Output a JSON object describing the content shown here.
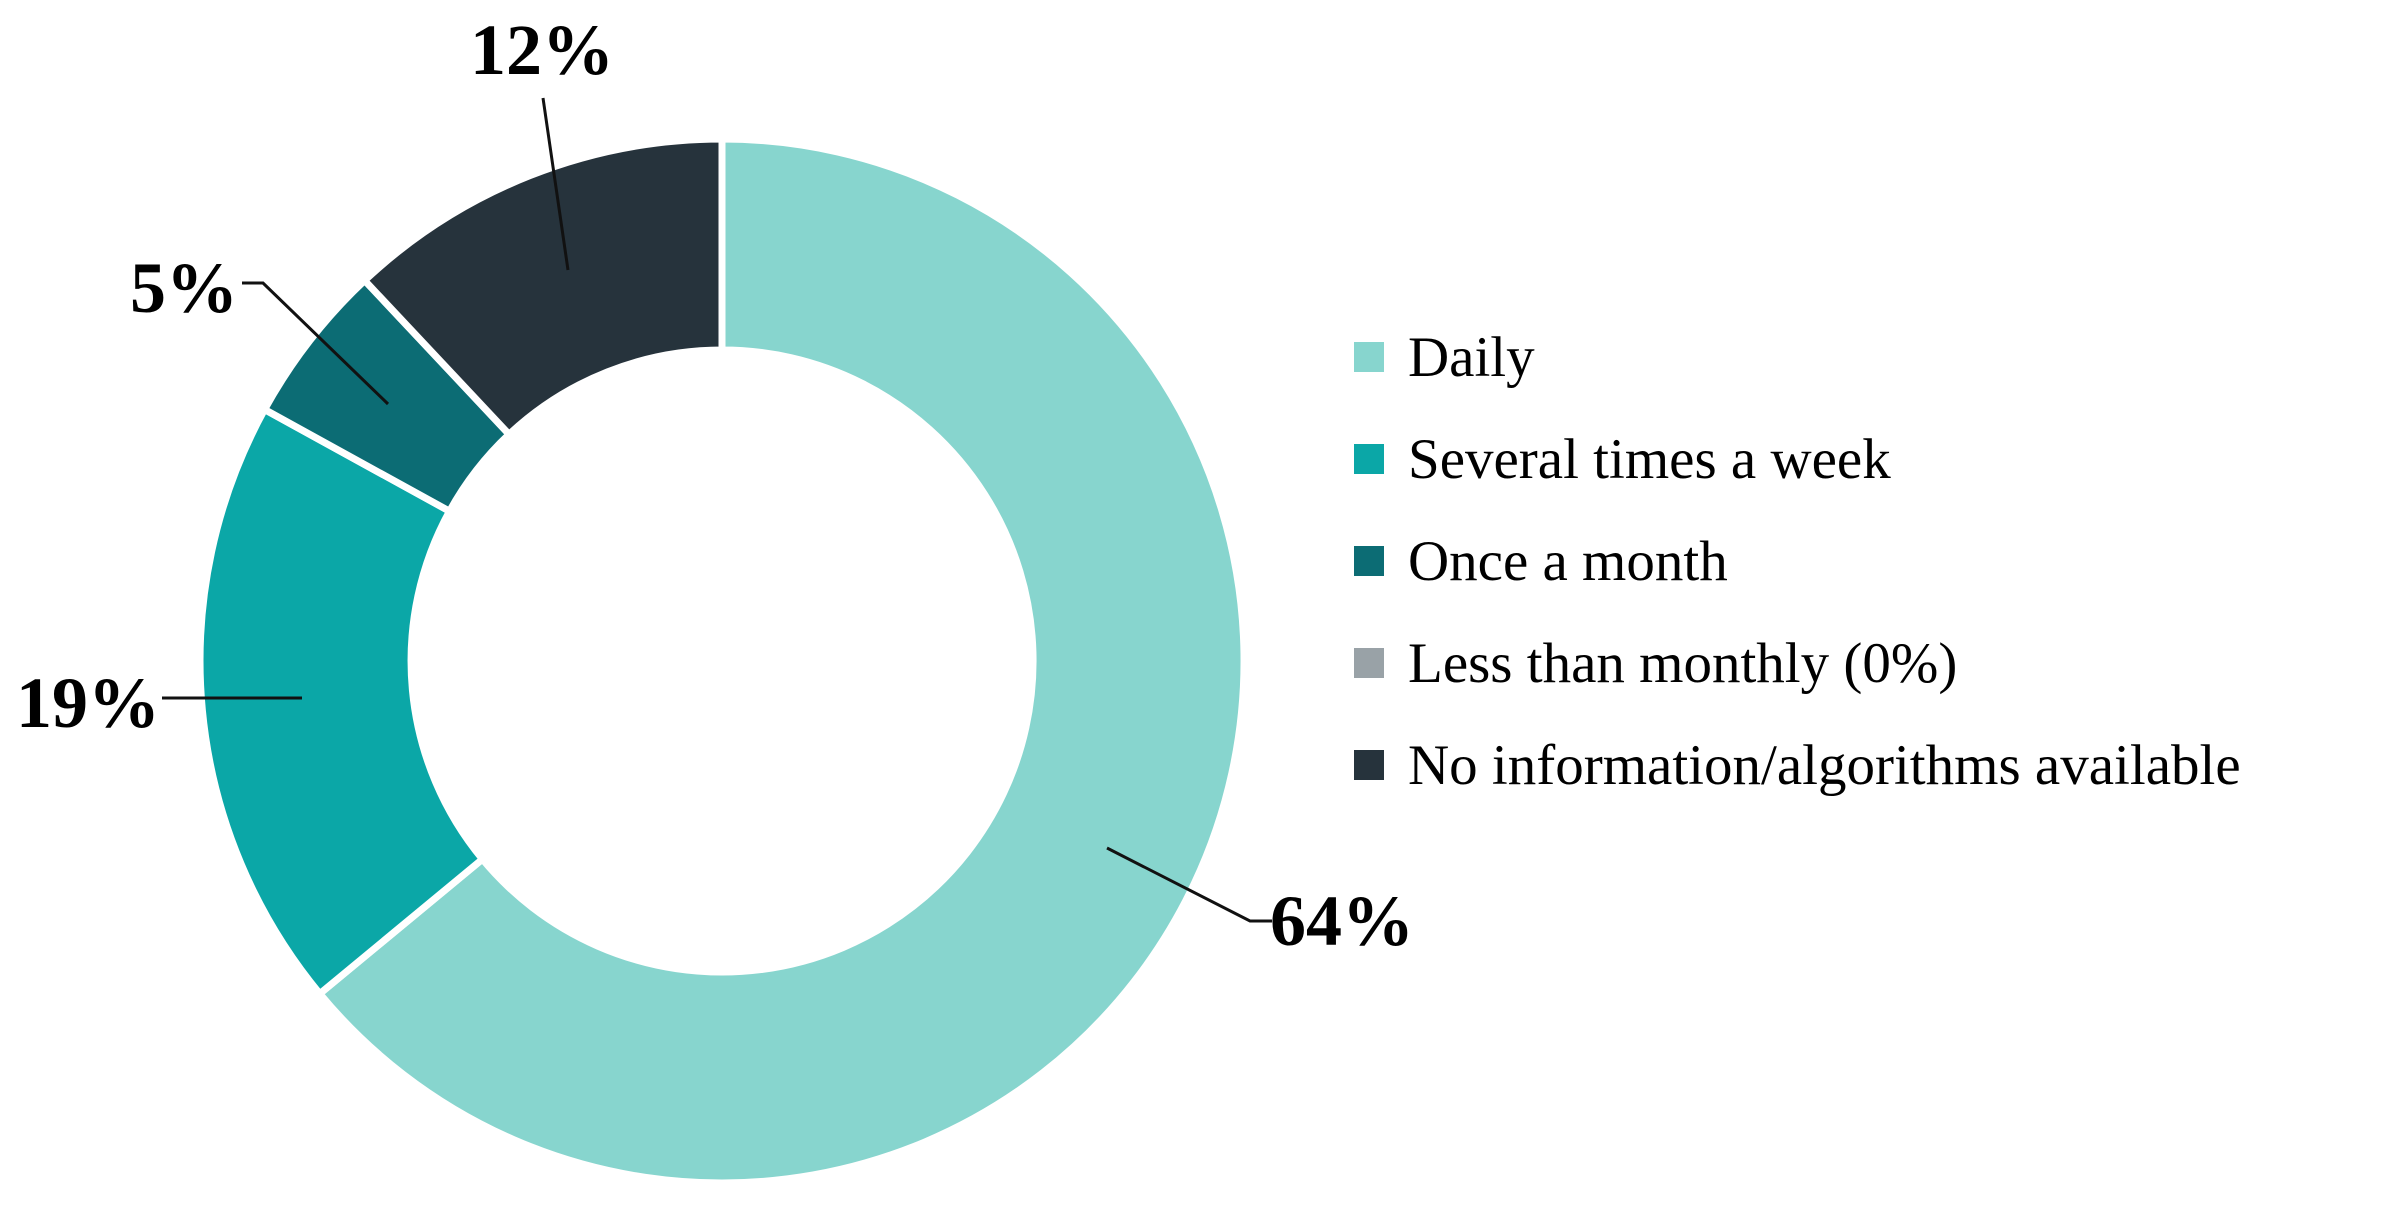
{
  "figure": {
    "background": "#ffffff"
  },
  "chart_data": {
    "type": "pie",
    "subtype": "donut",
    "title": "",
    "start_angle": "top",
    "direction": "clockwise",
    "hole_ratio": 0.6,
    "grid": false,
    "legend_position": "right",
    "slices": [
      {
        "label": "Daily",
        "value": 64,
        "percent_label": "64%",
        "color": "#87D5CE"
      },
      {
        "label": "Several times a week",
        "value": 19,
        "percent_label": "19%",
        "color": "#0BA7A7"
      },
      {
        "label": "Once a month",
        "value": 5,
        "percent_label": "5%",
        "color": "#0C6C74"
      },
      {
        "label": "Less than monthly (0%)",
        "value": 0,
        "percent_label": null,
        "color": "#99A2A7"
      },
      {
        "label": "No information/algorithms available",
        "value": 12,
        "percent_label": "12%",
        "color": "#26333C"
      }
    ]
  }
}
